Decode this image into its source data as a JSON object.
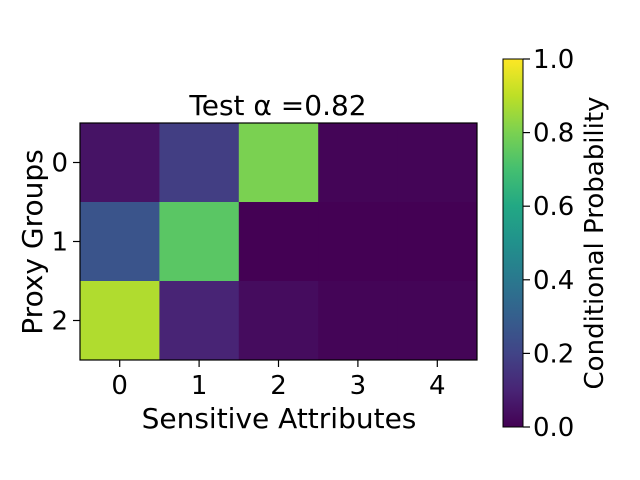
{
  "chart_data": {
    "type": "heatmap",
    "title": "Test α =0.82",
    "xlabel": "Sensitive Attributes",
    "ylabel": "Proxy Groups",
    "x_categories": [
      "0",
      "1",
      "2",
      "3",
      "4"
    ],
    "y_categories": [
      "0",
      "1",
      "2"
    ],
    "values": [
      [
        0.05,
        0.18,
        0.8,
        0.01,
        0.01
      ],
      [
        0.26,
        0.74,
        0.0,
        0.0,
        0.0
      ],
      [
        0.88,
        0.1,
        0.03,
        0.01,
        0.01
      ]
    ],
    "colorbar": {
      "label": "Conditional Probability",
      "range": [
        0.0,
        1.0
      ],
      "ticks": [
        "0.0",
        "0.2",
        "0.4",
        "0.6",
        "0.8",
        "1.0"
      ],
      "colormap": "viridis"
    }
  }
}
